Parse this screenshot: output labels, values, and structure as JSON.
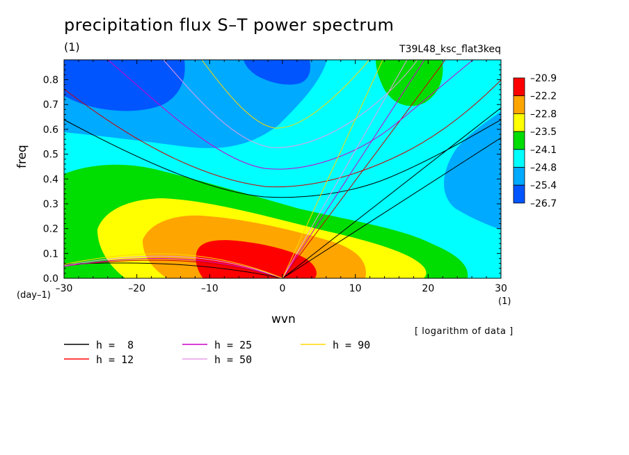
{
  "title": "precipitation flux S–T power spectrum",
  "subtitle_left": "(1)",
  "subtitle_right": "T39L48_ksc_flat3keq",
  "note": "[ logarithm of data ]",
  "chart_data": {
    "type": "contour",
    "xlabel": "wvn",
    "ylabel": "freq",
    "x_unit": "(1)",
    "y_unit": "(day–1)",
    "xlim": [
      -30,
      30
    ],
    "ylim": [
      0.0,
      0.88
    ],
    "x_ticks": [
      "–30",
      "–20",
      "–10",
      "0",
      "10",
      "20",
      "30"
    ],
    "y_ticks": [
      "0.0",
      "0.1",
      "0.2",
      "0.3",
      "0.4",
      "0.5",
      "0.6",
      "0.7",
      "0.8"
    ],
    "colorbar": {
      "levels": [
        "–20.9",
        "–22.2",
        "–22.8",
        "–23.5",
        "–24.1",
        "–24.8",
        "–25.4",
        "–26.7"
      ],
      "colors": [
        "#ff0000",
        "#ffa500",
        "#ffff00",
        "#00dd00",
        "#00ffff",
        "#00aaff",
        "#0055ff"
      ]
    },
    "dispersion_curves": [
      {
        "label": "h =  8",
        "color": "#000000"
      },
      {
        "label": "h = 12",
        "color": "#ff0000"
      },
      {
        "label": "h = 25",
        "color": "#cc00cc"
      },
      {
        "label": "h = 50",
        "color": "#e89ee8"
      },
      {
        "label": "h = 90",
        "color": "#ffd700"
      }
    ]
  }
}
